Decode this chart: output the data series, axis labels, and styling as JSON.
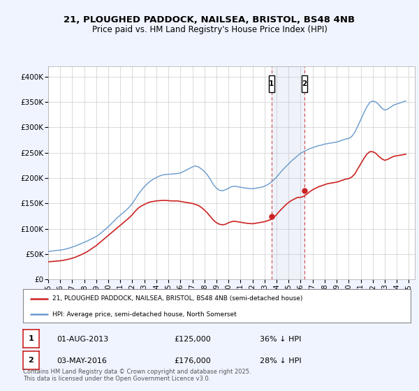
{
  "title_line1": "21, PLOUGHED PADDOCK, NAILSEA, BRISTOL, BS48 4NB",
  "title_line2": "Price paid vs. HM Land Registry's House Price Index (HPI)",
  "ylabel_ticks": [
    "£0",
    "£50K",
    "£100K",
    "£150K",
    "£200K",
    "£250K",
    "£300K",
    "£350K",
    "£400K"
  ],
  "ytick_values": [
    0,
    50000,
    100000,
    150000,
    200000,
    250000,
    300000,
    350000,
    400000
  ],
  "ylim": [
    0,
    420000
  ],
  "xlim_start": 1995.0,
  "xlim_end": 2025.5,
  "background_color": "#f0f4ff",
  "plot_bg_color": "#ffffff",
  "hpi_color": "#6699cc",
  "price_color": "#cc2222",
  "marker1_date": 2013.58,
  "marker1_price": 125000,
  "marker1_label": "1",
  "marker2_date": 2016.33,
  "marker2_price": 176000,
  "marker2_label": "2",
  "legend_label1": "21, PLOUGHED PADDOCK, NAILSEA, BRISTOL, BS48 4NB (semi-detached house)",
  "legend_label2": "HPI: Average price, semi-detached house, North Somerset",
  "annotation1_date": "01-AUG-2013",
  "annotation1_price": "£125,000",
  "annotation1_pct": "36% ↓ HPI",
  "annotation2_date": "03-MAY-2016",
  "annotation2_price": "£176,000",
  "annotation2_pct": "28% ↓ HPI",
  "footer": "Contains HM Land Registry data © Crown copyright and database right 2025.\nThis data is licensed under the Open Government Licence v3.0.",
  "hpi_x": [
    1995.0,
    1995.25,
    1995.5,
    1995.75,
    1996.0,
    1996.25,
    1996.5,
    1996.75,
    1997.0,
    1997.25,
    1997.5,
    1997.75,
    1998.0,
    1998.25,
    1998.5,
    1998.75,
    1999.0,
    1999.25,
    1999.5,
    1999.75,
    2000.0,
    2000.25,
    2000.5,
    2000.75,
    2001.0,
    2001.25,
    2001.5,
    2001.75,
    2002.0,
    2002.25,
    2002.5,
    2002.75,
    2003.0,
    2003.25,
    2003.5,
    2003.75,
    2004.0,
    2004.25,
    2004.5,
    2004.75,
    2005.0,
    2005.25,
    2005.5,
    2005.75,
    2006.0,
    2006.25,
    2006.5,
    2006.75,
    2007.0,
    2007.25,
    2007.5,
    2007.75,
    2008.0,
    2008.25,
    2008.5,
    2008.75,
    2009.0,
    2009.25,
    2009.5,
    2009.75,
    2010.0,
    2010.25,
    2010.5,
    2010.75,
    2011.0,
    2011.25,
    2011.5,
    2011.75,
    2012.0,
    2012.25,
    2012.5,
    2012.75,
    2013.0,
    2013.25,
    2013.5,
    2013.75,
    2014.0,
    2014.25,
    2014.5,
    2014.75,
    2015.0,
    2015.25,
    2015.5,
    2015.75,
    2016.0,
    2016.25,
    2016.5,
    2016.75,
    2017.0,
    2017.25,
    2017.5,
    2017.75,
    2018.0,
    2018.25,
    2018.5,
    2018.75,
    2019.0,
    2019.25,
    2019.5,
    2019.75,
    2020.0,
    2020.25,
    2020.5,
    2020.75,
    2021.0,
    2021.25,
    2021.5,
    2021.75,
    2022.0,
    2022.25,
    2022.5,
    2022.75,
    2023.0,
    2023.25,
    2023.5,
    2023.75,
    2024.0,
    2024.25,
    2024.5,
    2024.75
  ],
  "hpi_y": [
    55000,
    56000,
    57000,
    57500,
    58000,
    59000,
    60500,
    62000,
    64000,
    66000,
    68500,
    71000,
    73500,
    76000,
    79000,
    82000,
    85000,
    89000,
    94000,
    99000,
    104000,
    110000,
    116000,
    122000,
    127000,
    132000,
    137000,
    143000,
    150000,
    159000,
    168000,
    176000,
    183000,
    189000,
    194000,
    198000,
    201000,
    204000,
    206000,
    207000,
    207500,
    208000,
    208500,
    209000,
    210000,
    213000,
    216000,
    219000,
    222000,
    224000,
    222000,
    218000,
    213000,
    206000,
    197000,
    187000,
    180000,
    176000,
    175000,
    177000,
    180000,
    183000,
    184000,
    183000,
    182000,
    181000,
    180000,
    179500,
    179000,
    180000,
    181000,
    182000,
    184000,
    187000,
    191000,
    196000,
    202000,
    209000,
    216000,
    222000,
    228000,
    234000,
    239000,
    244000,
    249000,
    252000,
    255000,
    258000,
    260000,
    262000,
    264000,
    265000,
    267000,
    268000,
    269000,
    270000,
    271000,
    273000,
    275000,
    277000,
    278000,
    282000,
    290000,
    302000,
    315000,
    328000,
    340000,
    349000,
    352000,
    350000,
    345000,
    338000,
    334000,
    336000,
    340000,
    344000,
    346000,
    348000,
    350000,
    352000
  ],
  "price_x": [
    1995.0,
    1995.25,
    1995.5,
    1995.75,
    1996.0,
    1996.25,
    1996.5,
    1996.75,
    1997.0,
    1997.25,
    1997.5,
    1997.75,
    1998.0,
    1998.25,
    1998.5,
    1998.75,
    1999.0,
    1999.25,
    1999.5,
    1999.75,
    2000.0,
    2000.25,
    2000.5,
    2000.75,
    2001.0,
    2001.25,
    2001.5,
    2001.75,
    2002.0,
    2002.25,
    2002.5,
    2002.75,
    2003.0,
    2003.25,
    2003.5,
    2003.75,
    2004.0,
    2004.25,
    2004.5,
    2004.75,
    2005.0,
    2005.25,
    2005.5,
    2005.75,
    2006.0,
    2006.25,
    2006.5,
    2006.75,
    2007.0,
    2007.25,
    2007.5,
    2007.75,
    2008.0,
    2008.25,
    2008.5,
    2008.75,
    2009.0,
    2009.25,
    2009.5,
    2009.75,
    2010.0,
    2010.25,
    2010.5,
    2010.75,
    2011.0,
    2011.25,
    2011.5,
    2011.75,
    2012.0,
    2012.25,
    2012.5,
    2012.75,
    2013.0,
    2013.25,
    2013.5,
    2013.75,
    2014.0,
    2014.25,
    2014.5,
    2014.75,
    2015.0,
    2015.25,
    2015.5,
    2015.75,
    2016.0,
    2016.25,
    2016.5,
    2016.75,
    2017.0,
    2017.25,
    2017.5,
    2017.75,
    2018.0,
    2018.25,
    2018.5,
    2018.75,
    2019.0,
    2019.25,
    2019.5,
    2019.75,
    2020.0,
    2020.25,
    2020.5,
    2020.75,
    2021.0,
    2021.25,
    2021.5,
    2021.75,
    2022.0,
    2022.25,
    2022.5,
    2022.75,
    2023.0,
    2023.25,
    2023.5,
    2023.75,
    2024.0,
    2024.25,
    2024.5,
    2024.75
  ],
  "price_y": [
    35000,
    35500,
    36000,
    36500,
    37000,
    38000,
    39000,
    40500,
    42000,
    44000,
    46500,
    49000,
    52000,
    55000,
    59000,
    63000,
    67000,
    72000,
    77000,
    82000,
    87000,
    92000,
    97000,
    102000,
    107000,
    112000,
    117000,
    122000,
    128000,
    135000,
    141000,
    145000,
    148000,
    151000,
    153000,
    154000,
    155000,
    155500,
    156000,
    156000,
    155500,
    155000,
    155000,
    155000,
    154000,
    153000,
    152000,
    151000,
    150000,
    148000,
    146000,
    142000,
    137000,
    131000,
    124000,
    117000,
    112000,
    109000,
    108000,
    109000,
    112000,
    114000,
    115000,
    114000,
    113000,
    112000,
    111000,
    110500,
    110000,
    111000,
    112000,
    113000,
    114000,
    116000,
    118000,
    122000,
    128000,
    135000,
    141000,
    147000,
    152000,
    156000,
    159000,
    162000,
    162000,
    164000,
    168000,
    173000,
    177000,
    180000,
    183000,
    185000,
    187000,
    189000,
    190000,
    191000,
    192000,
    194000,
    196000,
    198000,
    199000,
    202000,
    208000,
    218000,
    228000,
    238000,
    247000,
    252000,
    252000,
    249000,
    243000,
    238000,
    235000,
    237000,
    240000,
    243000,
    244000,
    245000,
    246000,
    247000
  ],
  "xtick_years": [
    1995,
    1996,
    1997,
    1998,
    1999,
    2000,
    2001,
    2002,
    2003,
    2004,
    2005,
    2006,
    2007,
    2008,
    2009,
    2010,
    2011,
    2012,
    2013,
    2014,
    2015,
    2016,
    2017,
    2018,
    2019,
    2020,
    2021,
    2022,
    2023,
    2024,
    2025
  ]
}
